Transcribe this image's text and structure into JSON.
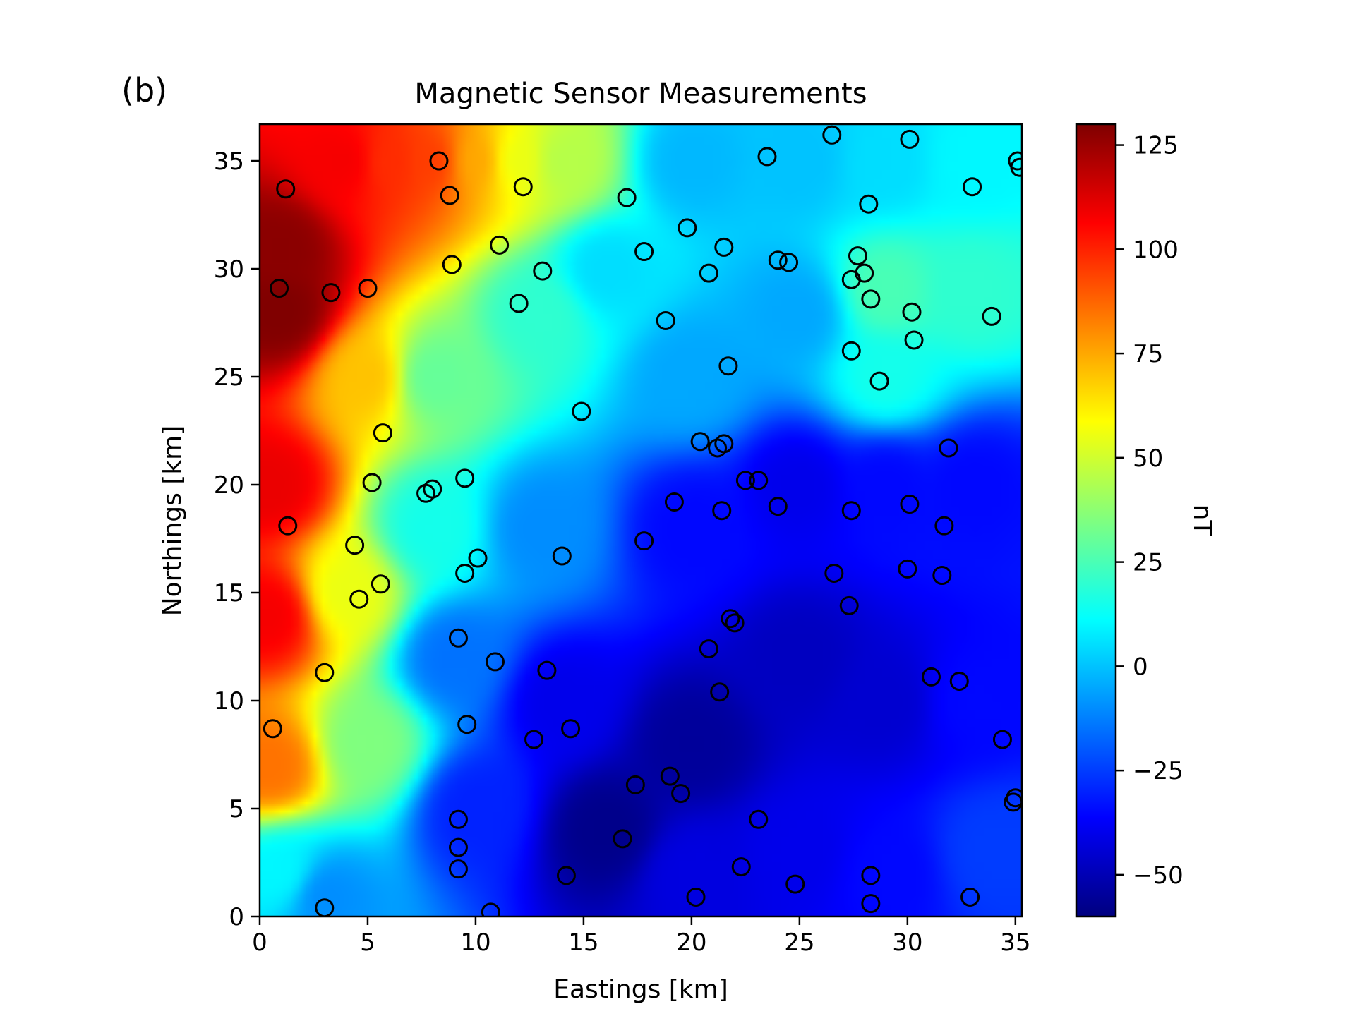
{
  "chart_data": {
    "type": "heatmap",
    "panel_label": "(b)",
    "title": "Magnetic Sensor Measurements",
    "xlabel": "Eastings [km]",
    "ylabel": "Northings [km]",
    "colorbar_label": "nT",
    "xlim": [
      0,
      35.3
    ],
    "ylim": [
      0,
      36.7
    ],
    "xticks": [
      0,
      5,
      10,
      15,
      20,
      25,
      30,
      35
    ],
    "yticks": [
      0,
      5,
      10,
      15,
      20,
      25,
      30,
      35
    ],
    "colorbar_range": [
      -60,
      130
    ],
    "colorbar_ticks": [
      -50,
      -25,
      0,
      25,
      50,
      75,
      100,
      125
    ],
    "colormap": "jet",
    "grid": false,
    "field_anchors": [
      [
        1,
        28,
        130
      ],
      [
        1,
        31,
        128
      ],
      [
        0.5,
        20,
        110
      ],
      [
        0.5,
        14,
        108
      ],
      [
        0.5,
        7,
        85
      ],
      [
        1,
        2,
        10
      ],
      [
        3,
        1,
        -10
      ],
      [
        4,
        35,
        108
      ],
      [
        6,
        35,
        98
      ],
      [
        8,
        35,
        95
      ],
      [
        10,
        35,
        75
      ],
      [
        12,
        35,
        55
      ],
      [
        14,
        35,
        45
      ],
      [
        5,
        25,
        70
      ],
      [
        4,
        15,
        55
      ],
      [
        5,
        8,
        35
      ],
      [
        8,
        25,
        30
      ],
      [
        8,
        18,
        15
      ],
      [
        9,
        12,
        -15
      ],
      [
        10,
        5,
        -30
      ],
      [
        13,
        28,
        20
      ],
      [
        13,
        18,
        -10
      ],
      [
        14,
        10,
        -40
      ],
      [
        16,
        4,
        -58
      ],
      [
        16,
        30,
        5
      ],
      [
        20,
        35,
        -2
      ],
      [
        20,
        25,
        -5
      ],
      [
        20,
        18,
        -35
      ],
      [
        20,
        8,
        -55
      ],
      [
        20,
        2,
        -42
      ],
      [
        25,
        35,
        0
      ],
      [
        25,
        28,
        -5
      ],
      [
        25,
        20,
        -40
      ],
      [
        25,
        12,
        -48
      ],
      [
        25,
        3,
        -40
      ],
      [
        29,
        35,
        5
      ],
      [
        29,
        29,
        25
      ],
      [
        29,
        25,
        15
      ],
      [
        29,
        20,
        -35
      ],
      [
        29,
        10,
        -45
      ],
      [
        29,
        2,
        -35
      ],
      [
        33,
        35,
        10
      ],
      [
        33,
        29,
        20
      ],
      [
        33,
        20,
        -35
      ],
      [
        33,
        10,
        -35
      ],
      [
        34,
        3,
        -25
      ]
    ],
    "sensors": [
      [
        1.2,
        33.7
      ],
      [
        0.9,
        29.1
      ],
      [
        3.3,
        28.9
      ],
      [
        5.0,
        29.1
      ],
      [
        8.3,
        35.0
      ],
      [
        8.8,
        33.4
      ],
      [
        8.9,
        30.2
      ],
      [
        12.2,
        33.8
      ],
      [
        11.1,
        31.1
      ],
      [
        13.1,
        29.9
      ],
      [
        12.0,
        28.4
      ],
      [
        17.0,
        33.3
      ],
      [
        17.8,
        30.8
      ],
      [
        19.8,
        31.9
      ],
      [
        21.5,
        31.0
      ],
      [
        20.8,
        29.8
      ],
      [
        18.8,
        27.6
      ],
      [
        23.5,
        35.2
      ],
      [
        26.5,
        36.2
      ],
      [
        30.1,
        36.0
      ],
      [
        35.1,
        35.0
      ],
      [
        35.2,
        34.7
      ],
      [
        33.0,
        33.8
      ],
      [
        28.2,
        33.0
      ],
      [
        27.7,
        30.6
      ],
      [
        28.0,
        29.8
      ],
      [
        27.4,
        29.5
      ],
      [
        24.0,
        30.4
      ],
      [
        24.5,
        30.3
      ],
      [
        28.3,
        28.6
      ],
      [
        30.2,
        28.0
      ],
      [
        30.3,
        26.7
      ],
      [
        33.9,
        27.8
      ],
      [
        27.4,
        26.2
      ],
      [
        28.7,
        24.8
      ],
      [
        21.7,
        25.5
      ],
      [
        14.9,
        23.4
      ],
      [
        5.7,
        22.4
      ],
      [
        5.2,
        20.1
      ],
      [
        7.7,
        19.6
      ],
      [
        8.0,
        19.8
      ],
      [
        9.5,
        20.3
      ],
      [
        20.4,
        22.0
      ],
      [
        21.5,
        21.9
      ],
      [
        21.2,
        21.7
      ],
      [
        31.9,
        21.7
      ],
      [
        22.5,
        20.2
      ],
      [
        23.1,
        20.2
      ],
      [
        19.2,
        19.2
      ],
      [
        21.4,
        18.8
      ],
      [
        24.0,
        19.0
      ],
      [
        27.4,
        18.8
      ],
      [
        30.1,
        19.1
      ],
      [
        31.7,
        18.1
      ],
      [
        1.3,
        18.1
      ],
      [
        4.4,
        17.2
      ],
      [
        5.6,
        15.4
      ],
      [
        4.6,
        14.7
      ],
      [
        10.1,
        16.6
      ],
      [
        9.5,
        15.9
      ],
      [
        14.0,
        16.7
      ],
      [
        17.8,
        17.4
      ],
      [
        26.6,
        15.9
      ],
      [
        30.0,
        16.1
      ],
      [
        31.6,
        15.8
      ],
      [
        27.3,
        14.4
      ],
      [
        21.8,
        13.8
      ],
      [
        22.0,
        13.6
      ],
      [
        9.2,
        12.9
      ],
      [
        10.9,
        11.8
      ],
      [
        13.3,
        11.4
      ],
      [
        20.8,
        12.4
      ],
      [
        3.0,
        11.3
      ],
      [
        31.1,
        11.1
      ],
      [
        32.4,
        10.9
      ],
      [
        21.3,
        10.4
      ],
      [
        0.6,
        8.7
      ],
      [
        9.6,
        8.9
      ],
      [
        12.7,
        8.2
      ],
      [
        14.4,
        8.7
      ],
      [
        34.4,
        8.2
      ],
      [
        19.0,
        6.5
      ],
      [
        17.4,
        6.1
      ],
      [
        19.5,
        5.7
      ],
      [
        34.9,
        5.3
      ],
      [
        35.0,
        5.5
      ],
      [
        9.2,
        4.5
      ],
      [
        23.1,
        4.5
      ],
      [
        16.8,
        3.6
      ],
      [
        9.2,
        3.2
      ],
      [
        9.2,
        2.2
      ],
      [
        14.2,
        1.9
      ],
      [
        22.3,
        2.3
      ],
      [
        24.8,
        1.5
      ],
      [
        28.3,
        1.9
      ],
      [
        20.2,
        0.9
      ],
      [
        28.3,
        0.6
      ],
      [
        32.9,
        0.9
      ],
      [
        3.0,
        0.4
      ],
      [
        10.7,
        0.2
      ]
    ]
  }
}
